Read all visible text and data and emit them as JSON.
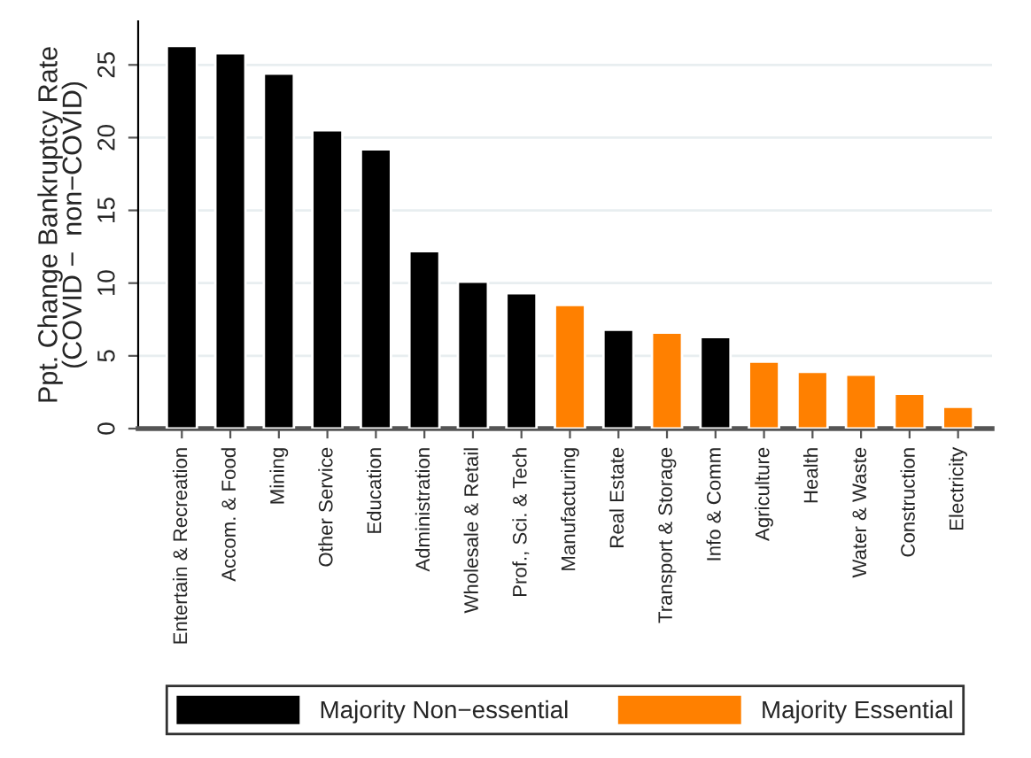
{
  "chart_data": {
    "type": "bar",
    "ylabel": "Ppt. Change Bankruptcy Rate\n(COVID −  non−COVID)",
    "categories": [
      "Entertain & Recreation",
      "Accom. & Food",
      "Mining",
      "Other Service",
      "Education",
      "Administration",
      "Wholesale & Retail",
      "Prof., Sci. & Tech",
      "Manufacturing",
      "Real Estate",
      "Transport & Storage",
      "Info & Comm",
      "Agriculture",
      "Health",
      "Water & Waste",
      "Construction",
      "Electricity"
    ],
    "series": [
      {
        "name": "Majority Non−essential",
        "color": "#000000",
        "values": [
          26.3,
          25.8,
          24.4,
          20.5,
          19.2,
          12.2,
          10.1,
          9.3,
          null,
          6.8,
          null,
          6.3,
          null,
          null,
          null,
          null,
          null
        ]
      },
      {
        "name": "Majority Essential",
        "color": "#ff8000",
        "values": [
          null,
          null,
          null,
          null,
          null,
          null,
          null,
          null,
          8.5,
          null,
          6.6,
          null,
          4.6,
          3.9,
          3.7,
          2.4,
          1.5
        ]
      }
    ],
    "ylim": [
      0,
      28
    ],
    "yticks": [
      0,
      5,
      10,
      15,
      20,
      25
    ],
    "grid": "y",
    "legend": "bottom"
  }
}
